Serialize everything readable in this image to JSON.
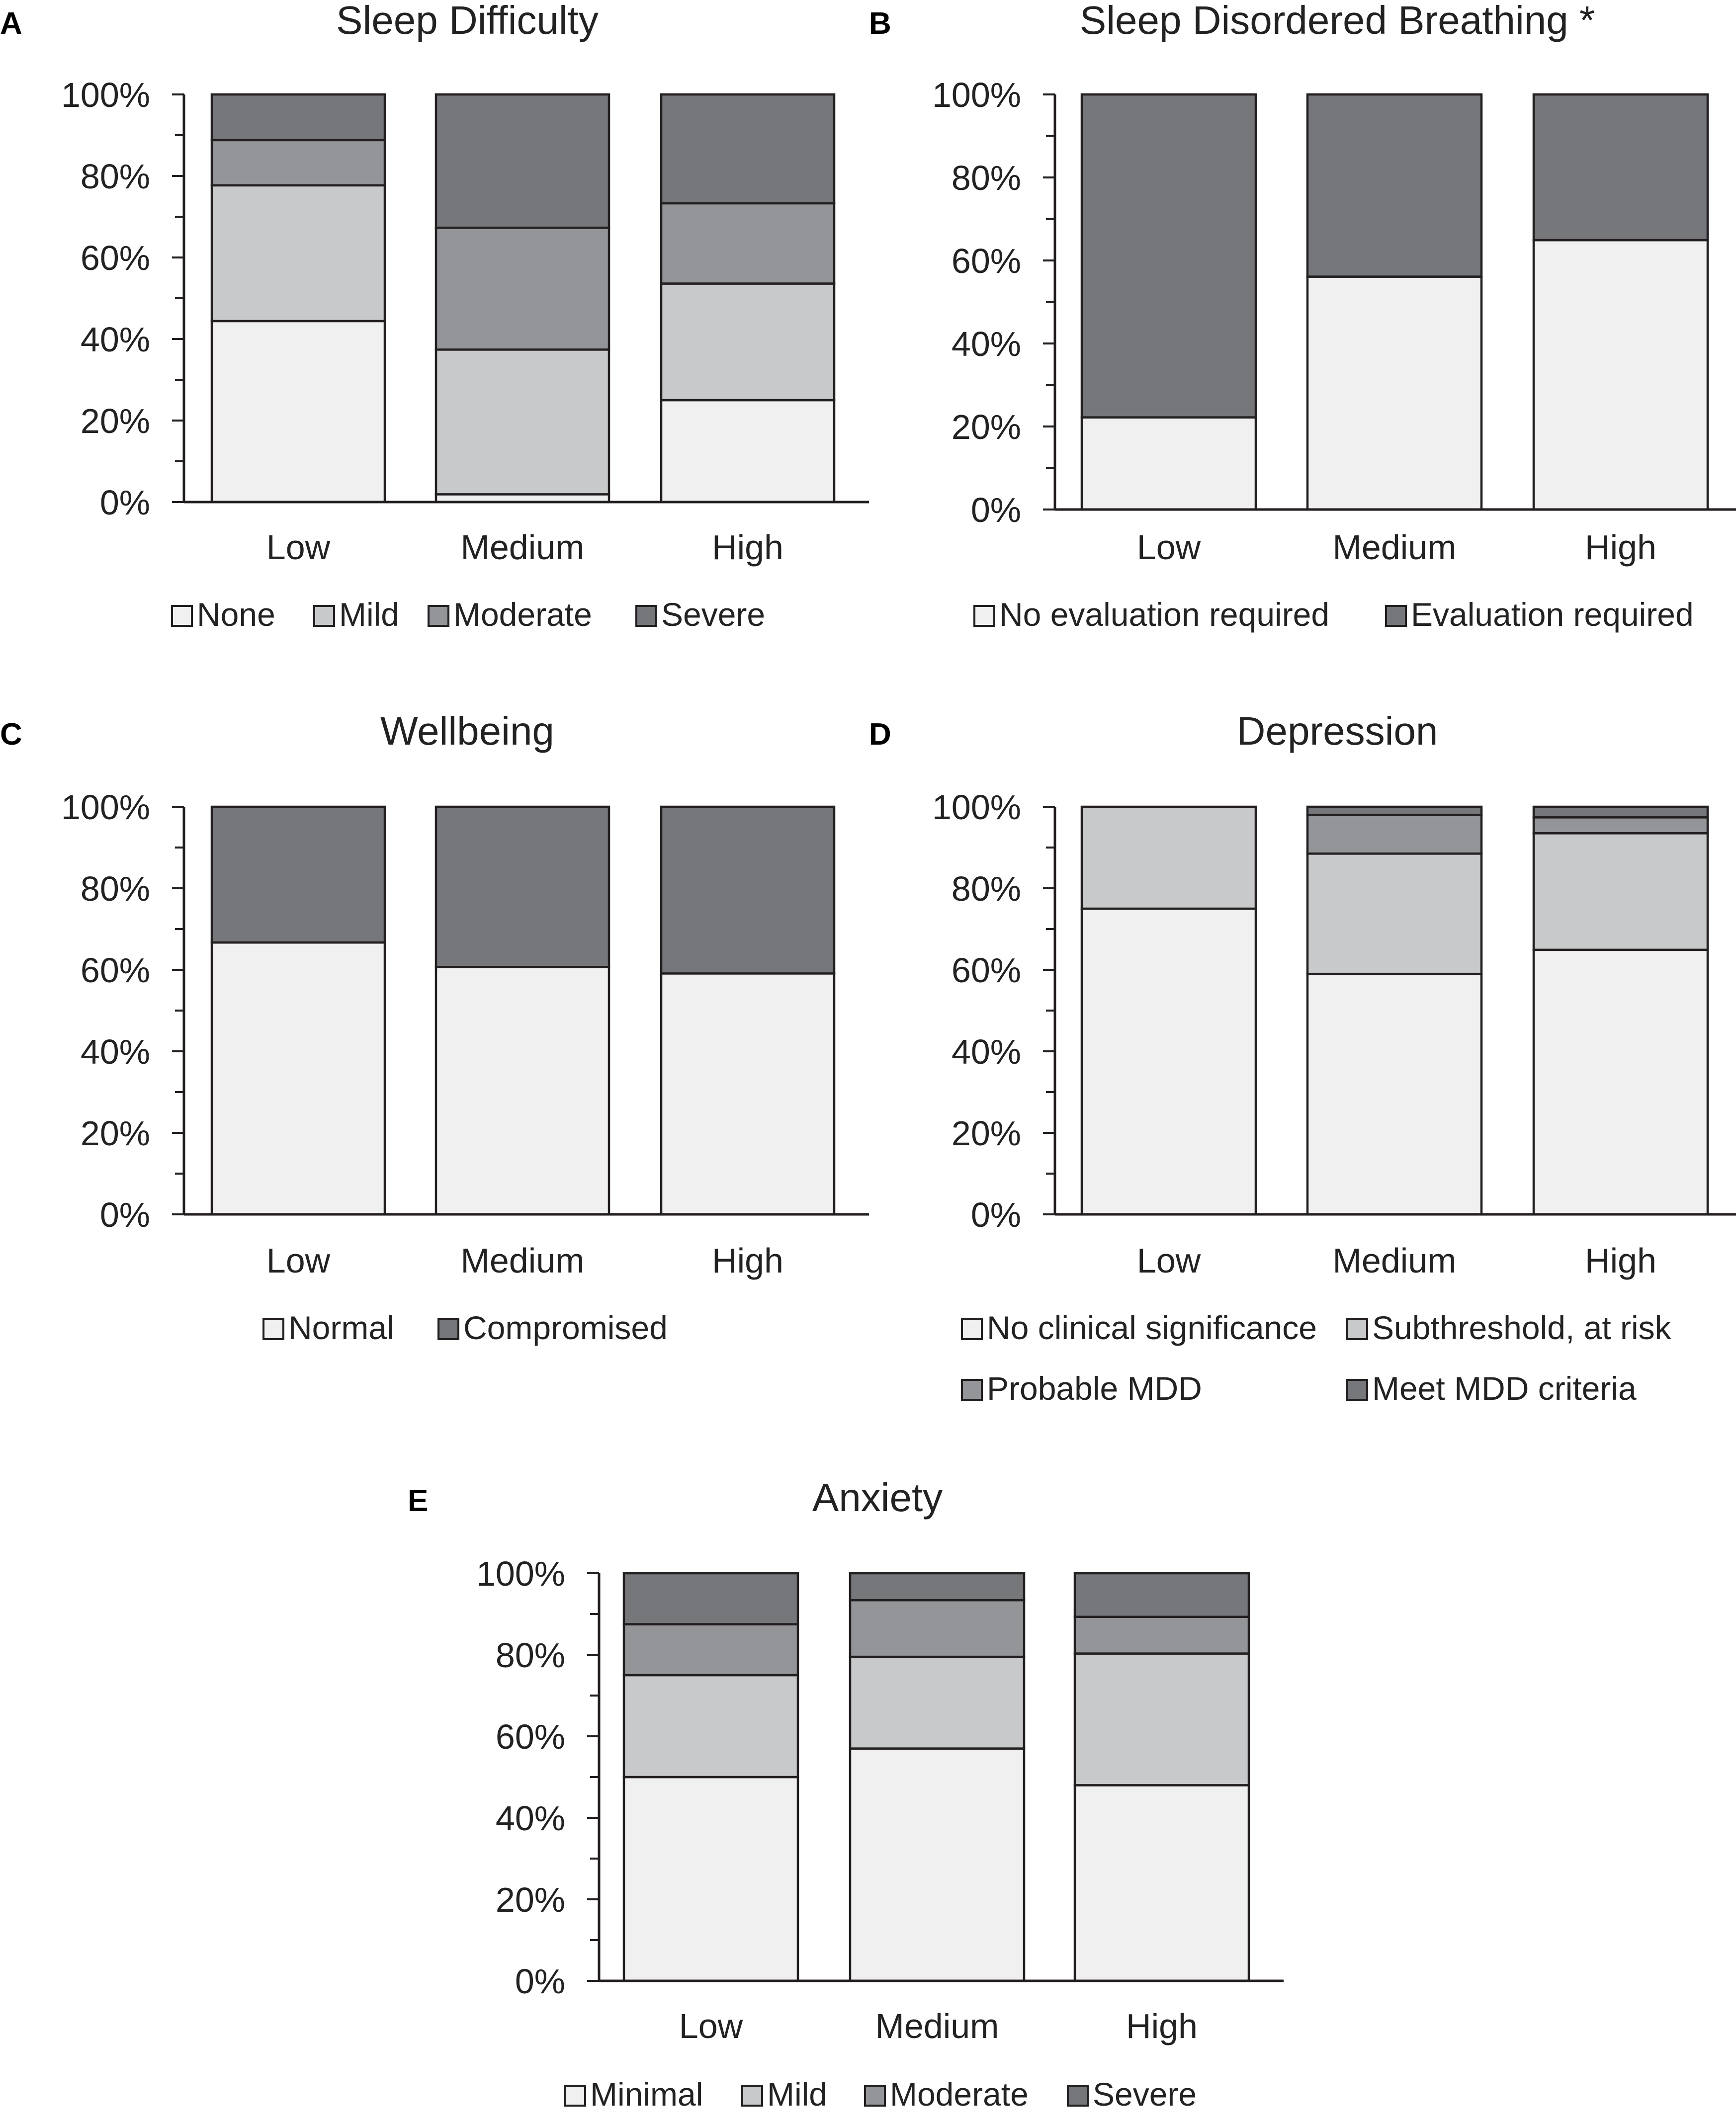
{
  "colors": {
    "white": "#f0f0f0",
    "light": "#c8c9cb",
    "mid": "#939598",
    "dark": "#76777a",
    "line": "#231f20"
  },
  "chart_data": [
    {
      "id": "A",
      "panel_letter": "A",
      "type": "bar",
      "stacked": true,
      "title": "Sleep Difficulty",
      "categories": [
        "Low",
        "Medium",
        "High"
      ],
      "y_ticks": [
        "0%",
        "20%",
        "40%",
        "60%",
        "80%",
        "100%"
      ],
      "ylim": [
        0,
        100
      ],
      "legend_rows": 1,
      "series": [
        {
          "name": "None",
          "color": "#f0f0f0",
          "values": [
            44.4,
            1.9,
            25.0
          ]
        },
        {
          "name": "Mild",
          "color": "#c8c9cb",
          "values": [
            33.3,
            35.5,
            28.6
          ]
        },
        {
          "name": "Moderate",
          "color": "#939598",
          "values": [
            11.1,
            29.9,
            19.7
          ]
        },
        {
          "name": "Severe",
          "color": "#76777a",
          "values": [
            11.2,
            32.7,
            26.7
          ]
        }
      ]
    },
    {
      "id": "B",
      "panel_letter": "B",
      "type": "bar",
      "stacked": true,
      "title": "Sleep Disordered Breathing *",
      "categories": [
        "Low",
        "Medium",
        "High"
      ],
      "y_ticks": [
        "0%",
        "20%",
        "40%",
        "60%",
        "80%",
        "100%"
      ],
      "ylim": [
        0,
        100
      ],
      "legend_rows": 1,
      "series": [
        {
          "name": "No evaluation required",
          "color": "#f0f0f0",
          "values": [
            22.2,
            56.1,
            64.9
          ]
        },
        {
          "name": "Evaluation required",
          "color": "#76777a",
          "values": [
            77.8,
            43.9,
            35.1
          ]
        }
      ]
    },
    {
      "id": "C",
      "panel_letter": "C",
      "type": "bar",
      "stacked": true,
      "title": "Wellbeing",
      "categories": [
        "Low",
        "Medium",
        "High"
      ],
      "y_ticks": [
        "0%",
        "20%",
        "40%",
        "60%",
        "80%",
        "100%"
      ],
      "ylim": [
        0,
        100
      ],
      "legend_rows": 1,
      "series": [
        {
          "name": "Normal",
          "color": "#f0f0f0",
          "values": [
            66.7,
            60.7,
            59.1
          ]
        },
        {
          "name": "Compromised",
          "color": "#76777a",
          "values": [
            33.3,
            39.3,
            40.9
          ]
        }
      ]
    },
    {
      "id": "D",
      "panel_letter": "D",
      "type": "bar",
      "stacked": true,
      "title": "Depression",
      "categories": [
        "Low",
        "Medium",
        "High"
      ],
      "y_ticks": [
        "0%",
        "20%",
        "40%",
        "60%",
        "80%",
        "100%"
      ],
      "ylim": [
        0,
        100
      ],
      "legend_rows": 2,
      "series": [
        {
          "name": "No clinical significance",
          "color": "#f0f0f0",
          "values": [
            75.0,
            59.0,
            64.9
          ]
        },
        {
          "name": "Subthreshold, at risk",
          "color": "#c8c9cb",
          "values": [
            25.0,
            29.5,
            28.6
          ]
        },
        {
          "name": "Probable MDD",
          "color": "#939598",
          "values": [
            0,
            9.5,
            3.9
          ]
        },
        {
          "name": "Meet MDD criteria",
          "color": "#76777a",
          "values": [
            0,
            2.0,
            2.6
          ]
        }
      ]
    },
    {
      "id": "E",
      "panel_letter": "E",
      "type": "bar",
      "stacked": true,
      "title": "Anxiety",
      "categories": [
        "Low",
        "Medium",
        "High"
      ],
      "y_ticks": [
        "0%",
        "20%",
        "40%",
        "60%",
        "80%",
        "100%"
      ],
      "ylim": [
        0,
        100
      ],
      "legend_rows": 1,
      "series": [
        {
          "name": "Minimal",
          "color": "#f0f0f0",
          "values": [
            50.0,
            57.0,
            48.0
          ]
        },
        {
          "name": "Mild",
          "color": "#c8c9cb",
          "values": [
            25.0,
            22.5,
            32.3
          ]
        },
        {
          "name": "Moderate",
          "color": "#939598",
          "values": [
            12.5,
            13.9,
            9.0
          ]
        },
        {
          "name": "Severe",
          "color": "#76777a",
          "values": [
            12.5,
            6.6,
            10.7
          ]
        }
      ]
    }
  ]
}
